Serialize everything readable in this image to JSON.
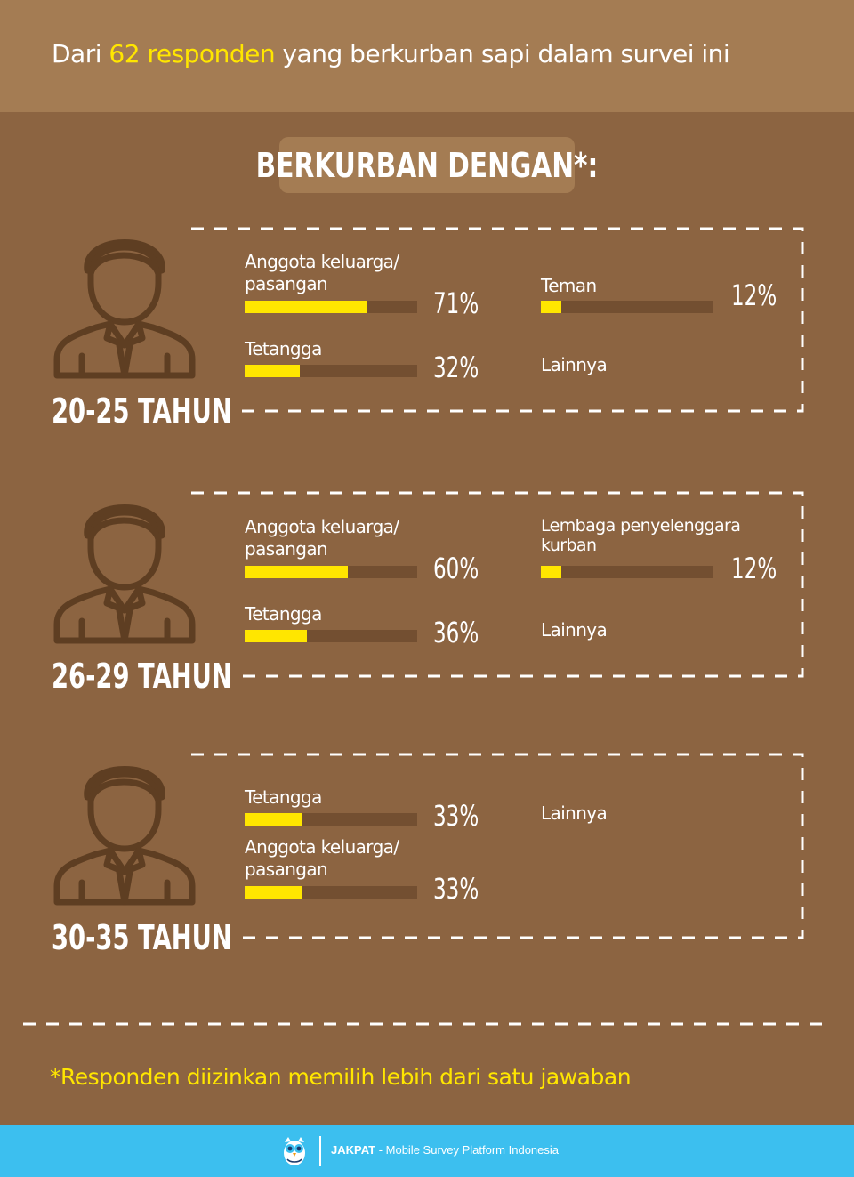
{
  "header": {
    "prefix": "Dari ",
    "highlight": "62 responden",
    "suffix": " yang berkurban sapi dalam survei ini"
  },
  "badge": "BERKURBAN DENGAN*:",
  "colors": {
    "background": "#8c6441",
    "header": "#a47c53",
    "bar_fill": "#ffe600",
    "bar_track": "#734f31",
    "footer": "#3cbfef"
  },
  "chart_data": [
    {
      "type": "bar",
      "title": "20-25 TAHUN",
      "categories": [
        "Anggota keluarga/ pasangan",
        "Tetangga",
        "Teman",
        "Lainnya"
      ],
      "values": [
        71,
        32,
        12,
        null
      ],
      "labels": [
        "71%",
        "32%",
        "12%",
        ""
      ]
    },
    {
      "type": "bar",
      "title": "26-29 TAHUN",
      "categories": [
        "Anggota keluarga/ pasangan",
        "Tetangga",
        "Lembaga penyelenggara kurban",
        "Lainnya"
      ],
      "values": [
        60,
        36,
        12,
        null
      ],
      "labels": [
        "60%",
        "36%",
        "12%",
        ""
      ]
    },
    {
      "type": "bar",
      "title": "30-35 TAHUN",
      "categories": [
        "Tetangga",
        "Anggota keluarga/ pasangan",
        "Lainnya"
      ],
      "values": [
        33,
        33,
        null
      ],
      "labels": [
        "33%",
        "33%",
        ""
      ]
    }
  ],
  "groups": [
    {
      "age": "20-25 TAHUN",
      "items": [
        {
          "line1": "Anggota keluarga/",
          "line2": "pasangan",
          "pct": "71%",
          "value": 71
        },
        {
          "line1": "Tetangga",
          "line2": "",
          "pct": "32%",
          "value": 32
        },
        {
          "line1": "Teman",
          "line2": "",
          "pct": "12%",
          "value": 12
        },
        {
          "line1": "Lainnya",
          "line2": "",
          "pct": "",
          "value": null
        }
      ]
    },
    {
      "age": "26-29 TAHUN",
      "items": [
        {
          "line1": "Anggota keluarga/",
          "line2": "pasangan",
          "pct": "60%",
          "value": 60
        },
        {
          "line1": "Tetangga",
          "line2": "",
          "pct": "36%",
          "value": 36
        },
        {
          "line1": "Lembaga penyelenggara",
          "line2": "kurban",
          "pct": "12%",
          "value": 12
        },
        {
          "line1": "Lainnya",
          "line2": "",
          "pct": "",
          "value": null
        }
      ]
    },
    {
      "age": "30-35 TAHUN",
      "items": [
        {
          "line1": "Tetangga",
          "line2": "",
          "pct": "33%",
          "value": 33
        },
        {
          "line1": "Anggota keluarga/",
          "line2": "pasangan",
          "pct": "33%",
          "value": 33
        },
        {
          "line1": "Lainnya",
          "line2": "",
          "pct": "",
          "value": null
        }
      ]
    }
  ],
  "note": "*Responden diizinkan memilih lebih dari satu jawaban",
  "footer": {
    "brand": "JAKPAT",
    "tagline": " - Mobile Survey Platform Indonesia",
    "logo_icon": "owl-logo-icon"
  }
}
